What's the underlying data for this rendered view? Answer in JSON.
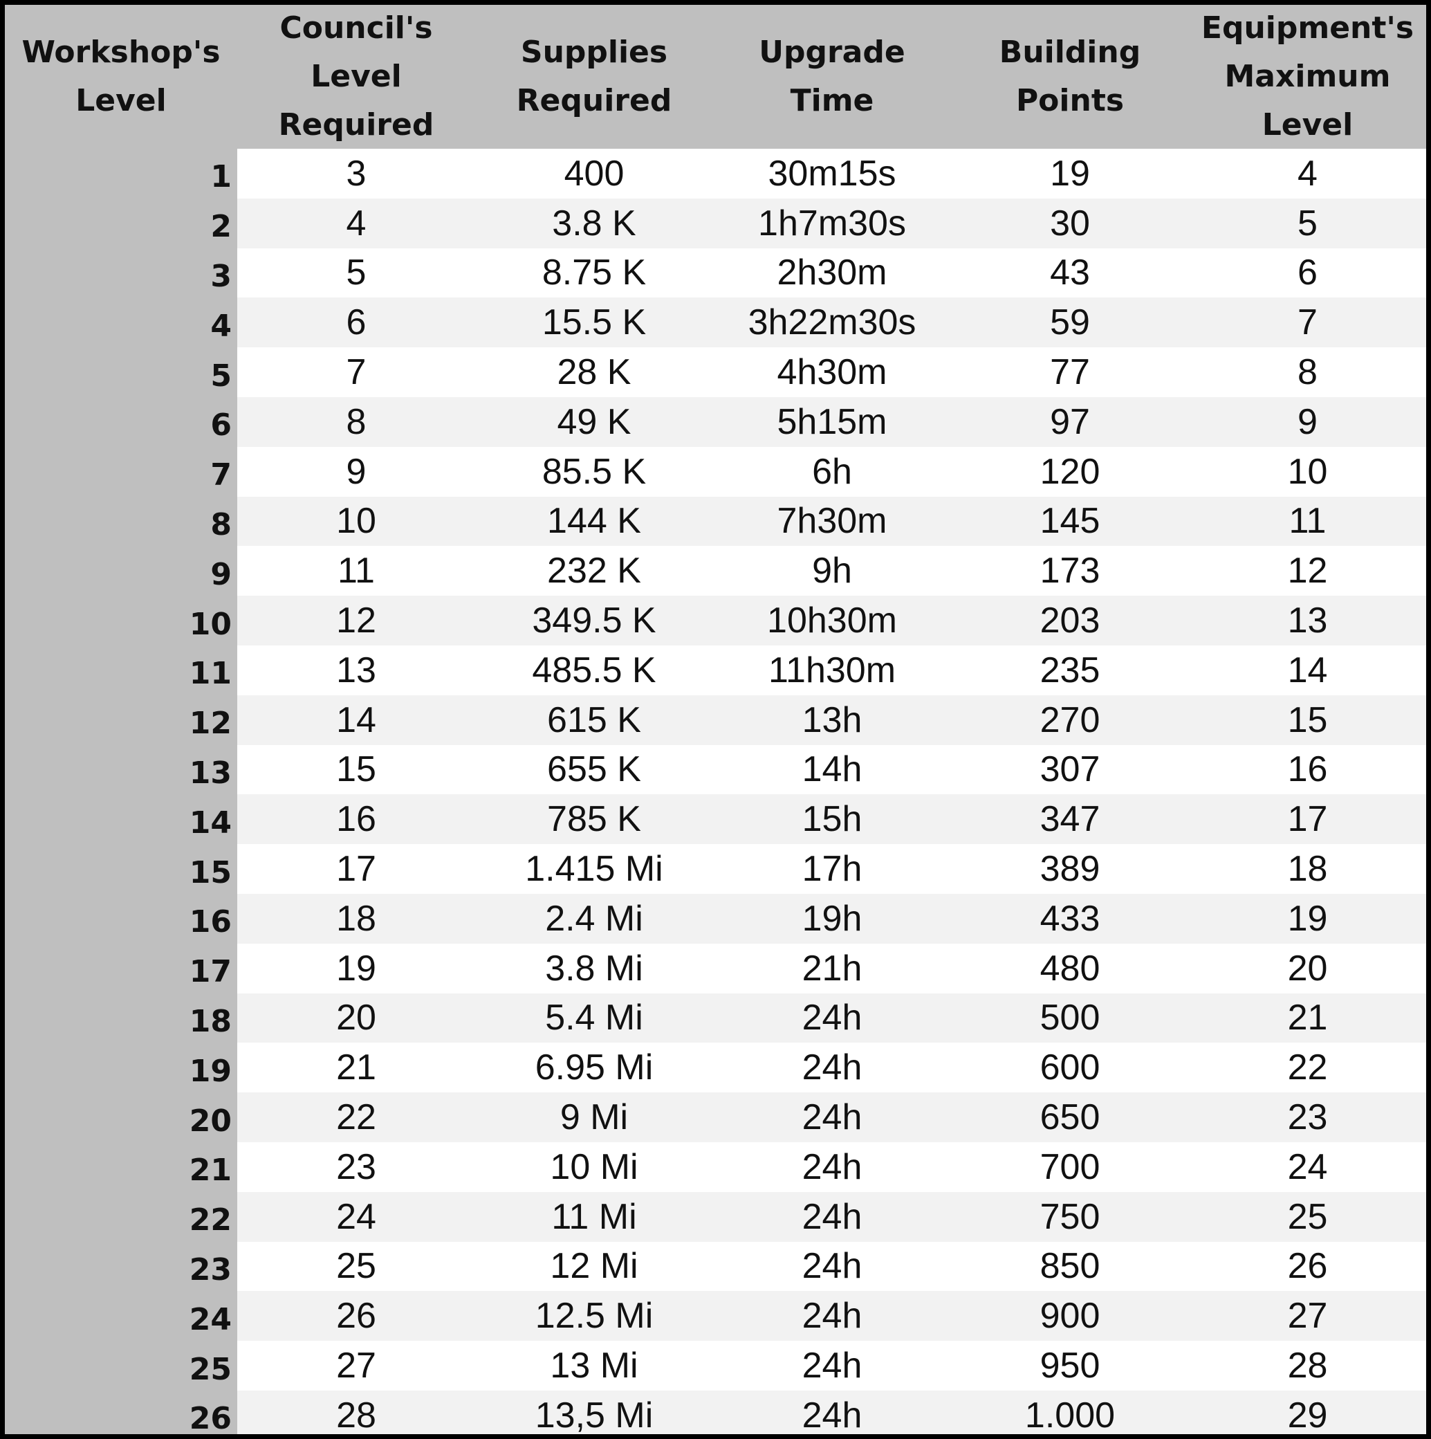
{
  "table": {
    "headers": [
      "Workshop's\nLevel",
      "Council's\nLevel\nRequired",
      "Supplies\nRequired",
      "Upgrade Time",
      "Building\nPoints",
      "Equipment's\nMaximum\nLevel"
    ],
    "rows": [
      [
        "1",
        "3",
        "400",
        "30m15s",
        "19",
        "4"
      ],
      [
        "2",
        "4",
        "3.8 K",
        "1h7m30s",
        "30",
        "5"
      ],
      [
        "3",
        "5",
        "8.75 K",
        "2h30m",
        "43",
        "6"
      ],
      [
        "4",
        "6",
        "15.5 K",
        "3h22m30s",
        "59",
        "7"
      ],
      [
        "5",
        "7",
        "28 K",
        "4h30m",
        "77",
        "8"
      ],
      [
        "6",
        "8",
        "49 K",
        "5h15m",
        "97",
        "9"
      ],
      [
        "7",
        "9",
        "85.5 K",
        "6h",
        "120",
        "10"
      ],
      [
        "8",
        "10",
        "144 K",
        "7h30m",
        "145",
        "11"
      ],
      [
        "9",
        "11",
        "232 K",
        "9h",
        "173",
        "12"
      ],
      [
        "10",
        "12",
        "349.5 K",
        "10h30m",
        "203",
        "13"
      ],
      [
        "11",
        "13",
        "485.5 K",
        "11h30m",
        "235",
        "14"
      ],
      [
        "12",
        "14",
        "615 K",
        "13h",
        "270",
        "15"
      ],
      [
        "13",
        "15",
        "655 K",
        "14h",
        "307",
        "16"
      ],
      [
        "14",
        "16",
        "785 K",
        "15h",
        "347",
        "17"
      ],
      [
        "15",
        "17",
        "1.415 Mi",
        "17h",
        "389",
        "18"
      ],
      [
        "16",
        "18",
        "2.4 Mi",
        "19h",
        "433",
        "19"
      ],
      [
        "17",
        "19",
        "3.8 Mi",
        "21h",
        "480",
        "20"
      ],
      [
        "18",
        "20",
        "5.4 Mi",
        "24h",
        "500",
        "21"
      ],
      [
        "19",
        "21",
        "6.95 Mi",
        "24h",
        "600",
        "22"
      ],
      [
        "20",
        "22",
        "9 Mi",
        "24h",
        "650",
        "23"
      ],
      [
        "21",
        "23",
        "10 Mi",
        "24h",
        "700",
        "24"
      ],
      [
        "22",
        "24",
        "11 Mi",
        "24h",
        "750",
        "25"
      ],
      [
        "23",
        "25",
        "12 Mi",
        "24h",
        "850",
        "26"
      ],
      [
        "24",
        "26",
        "12.5 Mi",
        "24h",
        "900",
        "27"
      ],
      [
        "25",
        "27",
        "13 Mi",
        "24h",
        "950",
        "28"
      ],
      [
        "26",
        "28",
        "13,5 Mi",
        "24h",
        "1.000",
        "29"
      ]
    ]
  },
  "colors": {
    "header_bg": "#bfbfbf",
    "row_odd": "#ffffff",
    "row_even": "#f2f2f2",
    "border": "#000000"
  }
}
